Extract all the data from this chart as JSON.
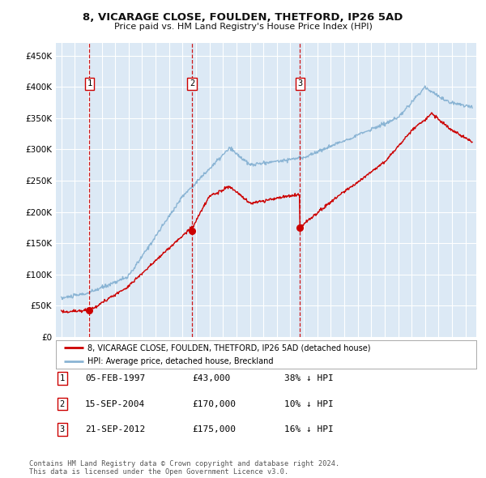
{
  "title": "8, VICARAGE CLOSE, FOULDEN, THETFORD, IP26 5AD",
  "subtitle": "Price paid vs. HM Land Registry's House Price Index (HPI)",
  "ylim": [
    0,
    470000
  ],
  "yticks": [
    0,
    50000,
    100000,
    150000,
    200000,
    250000,
    300000,
    350000,
    400000,
    450000
  ],
  "ytick_labels": [
    "£0",
    "£50K",
    "£100K",
    "£150K",
    "£200K",
    "£250K",
    "£300K",
    "£350K",
    "£400K",
    "£450K"
  ],
  "xlim_start": 1994.6,
  "xlim_end": 2025.8,
  "plot_bg_color": "#dce9f5",
  "grid_color": "#ffffff",
  "red_line_color": "#cc0000",
  "blue_line_color": "#8ab4d4",
  "transaction_line_color": "#cc0000",
  "marker_color": "#cc0000",
  "transactions": [
    {
      "num": 1,
      "year": 1997.09,
      "price": 43000
    },
    {
      "num": 2,
      "year": 2004.71,
      "price": 170000
    },
    {
      "num": 3,
      "year": 2012.71,
      "price": 175000
    }
  ],
  "legend_label_red": "8, VICARAGE CLOSE, FOULDEN, THETFORD, IP26 5AD (detached house)",
  "legend_label_blue": "HPI: Average price, detached house, Breckland",
  "footer": "Contains HM Land Registry data © Crown copyright and database right 2024.\nThis data is licensed under the Open Government Licence v3.0.",
  "table_rows": [
    [
      "1",
      "05-FEB-1997",
      "£43,000",
      "38% ↓ HPI"
    ],
    [
      "2",
      "15-SEP-2004",
      "£170,000",
      "10% ↓ HPI"
    ],
    [
      "3",
      "21-SEP-2012",
      "£175,000",
      "16% ↓ HPI"
    ]
  ]
}
